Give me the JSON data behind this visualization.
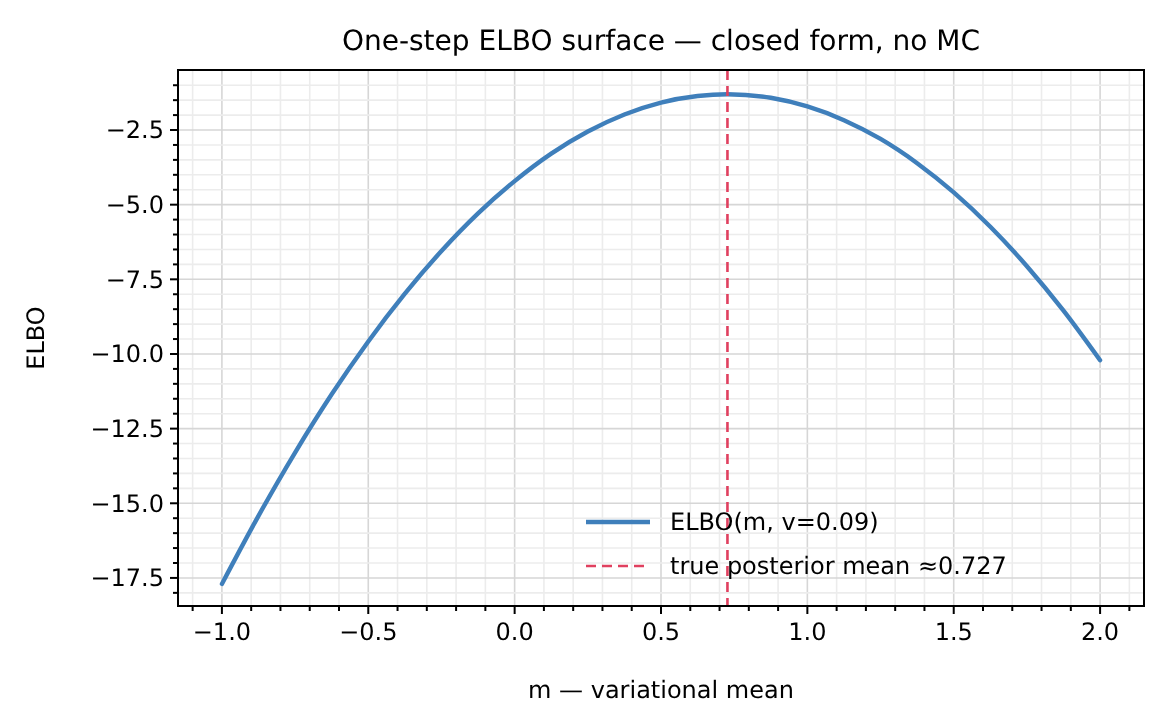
{
  "chart_data": {
    "type": "line",
    "title": "One-step ELBO surface — closed form, no MC",
    "xlabel": "m — variational mean",
    "ylabel": "ELBO",
    "x": [
      -1,
      -0.875,
      -0.75,
      -0.625,
      -0.5,
      -0.375,
      -0.25,
      -0.125,
      0,
      0.125,
      0.25,
      0.375,
      0.5,
      0.625,
      0.727,
      0.875,
      1,
      1.125,
      1.25,
      1.375,
      1.5,
      1.625,
      1.75,
      1.875,
      2
    ],
    "series": [
      {
        "name": "ELBO(m, v=0.09)",
        "color": "#3f7fbb",
        "values": [
          -17.7,
          -15.42,
          -13.3,
          -11.35,
          -9.58,
          -7.98,
          -6.55,
          -5.29,
          -4.21,
          -3.29,
          -2.55,
          -1.98,
          -1.58,
          -1.36,
          -1.3,
          -1.42,
          -1.71,
          -2.17,
          -2.8,
          -3.61,
          -4.59,
          -5.74,
          -7.06,
          -8.55,
          -10.21
        ]
      }
    ],
    "xlim": [
      -1.15,
      2.15
    ],
    "ylim": [
      -18.44,
      -0.49
    ],
    "xticks": [
      {
        "value": -1,
        "label": "−1.0"
      },
      {
        "value": -0.5,
        "label": "−0.5"
      },
      {
        "value": 0,
        "label": "0.0"
      },
      {
        "value": 0.5,
        "label": "0.5"
      },
      {
        "value": 1,
        "label": "1.0"
      },
      {
        "value": 1.5,
        "label": "1.5"
      },
      {
        "value": 2,
        "label": "2.0"
      },
      {
        "value": -1.1,
        "label": null
      },
      {
        "value": -0.9,
        "label": null
      },
      {
        "value": -0.8,
        "label": null
      },
      {
        "value": -0.7,
        "label": null
      },
      {
        "value": -0.6,
        "label": null
      },
      {
        "value": -0.4,
        "label": null
      },
      {
        "value": -0.3,
        "label": null
      },
      {
        "value": -0.2,
        "label": null
      },
      {
        "value": -0.1,
        "label": null
      },
      {
        "value": 0.1,
        "label": null
      },
      {
        "value": 0.2,
        "label": null
      },
      {
        "value": 0.3,
        "label": null
      },
      {
        "value": 0.4,
        "label": null
      },
      {
        "value": 0.6,
        "label": null
      },
      {
        "value": 0.7,
        "label": null
      },
      {
        "value": 0.8,
        "label": null
      },
      {
        "value": 0.9,
        "label": null
      },
      {
        "value": 1.1,
        "label": null
      },
      {
        "value": 1.2,
        "label": null
      },
      {
        "value": 1.3,
        "label": null
      },
      {
        "value": 1.4,
        "label": null
      },
      {
        "value": 1.6,
        "label": null
      },
      {
        "value": 1.7,
        "label": null
      },
      {
        "value": 1.8,
        "label": null
      },
      {
        "value": 1.9,
        "label": null
      },
      {
        "value": 2.1,
        "label": null
      }
    ],
    "yticks": [
      {
        "value": -17.5,
        "label": "−17.5"
      },
      {
        "value": -15,
        "label": "−15.0"
      },
      {
        "value": -12.5,
        "label": "−12.5"
      },
      {
        "value": -10,
        "label": "−10.0"
      },
      {
        "value": -7.5,
        "label": "−7.5"
      },
      {
        "value": -5,
        "label": "−5.0"
      },
      {
        "value": -2.5,
        "label": "−2.5"
      },
      {
        "value": -18,
        "label": null
      },
      {
        "value": -17,
        "label": null
      },
      {
        "value": -16.5,
        "label": null
      },
      {
        "value": -16,
        "label": null
      },
      {
        "value": -15.5,
        "label": null
      },
      {
        "value": -14.5,
        "label": null
      },
      {
        "value": -14,
        "label": null
      },
      {
        "value": -13.5,
        "label": null
      },
      {
        "value": -13,
        "label": null
      },
      {
        "value": -12,
        "label": null
      },
      {
        "value": -11.5,
        "label": null
      },
      {
        "value": -11,
        "label": null
      },
      {
        "value": -10.5,
        "label": null
      },
      {
        "value": -9.5,
        "label": null
      },
      {
        "value": -9,
        "label": null
      },
      {
        "value": -8.5,
        "label": null
      },
      {
        "value": -8,
        "label": null
      },
      {
        "value": -7,
        "label": null
      },
      {
        "value": -6.5,
        "label": null
      },
      {
        "value": -6,
        "label": null
      },
      {
        "value": -5.5,
        "label": null
      },
      {
        "value": -4.5,
        "label": null
      },
      {
        "value": -4,
        "label": null
      },
      {
        "value": -3.5,
        "label": null
      },
      {
        "value": -3,
        "label": null
      },
      {
        "value": -2,
        "label": null
      },
      {
        "value": -1.5,
        "label": null
      },
      {
        "value": -1,
        "label": null
      }
    ],
    "ref_lines": [
      {
        "axis": "x",
        "value": 0.727,
        "label": "true posterior mean  ≈0.727",
        "color": "#e0405f",
        "line_style": "dashed"
      }
    ],
    "grid": true,
    "legend": "bottom right"
  }
}
